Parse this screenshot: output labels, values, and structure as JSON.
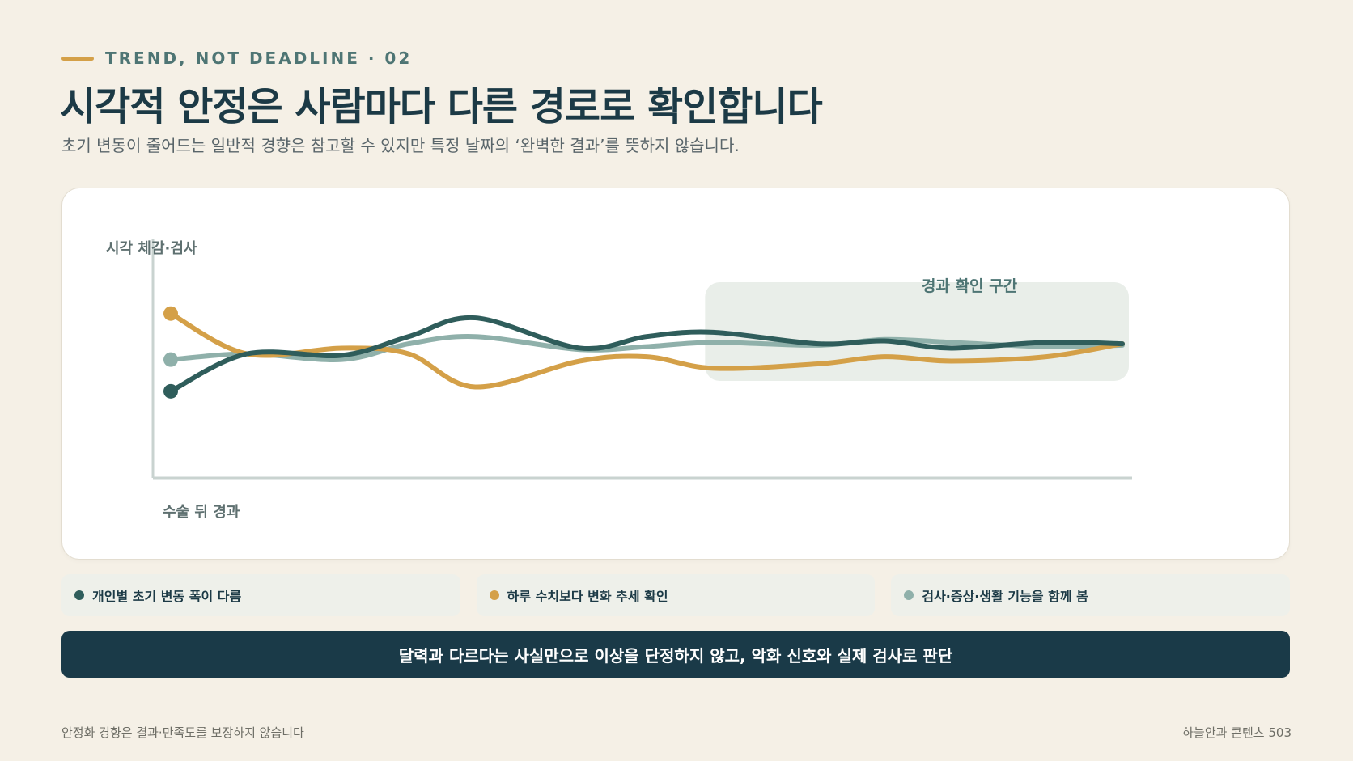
{
  "eyebrow": "TREND, NOT DEADLINE · 02",
  "title": "시각적 안정은 사람마다 다른 경로로 확인합니다",
  "subtitle": "초기 변동이 줄어드는 일반적 경향은 참고할 수 있지만 특정 날짜의 ‘완벽한 결과’를 뜻하지 않습니다.",
  "colors": {
    "dark_teal": "#2f5d5b",
    "amber": "#d4a048",
    "sage": "#8fb0aa",
    "banner": "#1a3a48",
    "zone": "#e9eee9"
  },
  "chart_data": {
    "type": "line",
    "ylabel": "시각 체감·검사",
    "xlabel": "수술 뒤 경과",
    "xlim": [
      0,
      100
    ],
    "ylim": [
      0,
      100
    ],
    "grid": false,
    "x": [
      0,
      8,
      18,
      25,
      32,
      43,
      50,
      57,
      68,
      75,
      82,
      92,
      100
    ],
    "series": [
      {
        "color": "#2f5d5b",
        "values": [
          22,
          48,
          47,
          60,
          73,
          52,
          60,
          63,
          55,
          57,
          52,
          56,
          55
        ]
      },
      {
        "color": "#d4a048",
        "values": [
          76,
          48,
          52,
          48,
          25,
          43,
          46,
          38,
          41,
          46,
          43,
          46,
          55
        ]
      },
      {
        "color": "#8fb0aa",
        "values": [
          44,
          48,
          44,
          55,
          60,
          51,
          53,
          56,
          54,
          58,
          56,
          53,
          54
        ]
      }
    ],
    "annotations": [
      {
        "text": "경과 확인 구간",
        "x_range": [
          57,
          100
        ]
      }
    ]
  },
  "legend": [
    {
      "label": "개인별 초기 변동 폭이 다름",
      "color": "#2f5d5b"
    },
    {
      "label": "하루 수치보다 변화 추세 확인",
      "color": "#d4a048"
    },
    {
      "label": "검사·증상·생활 기능을 함께 봄",
      "color": "#8fb0aa"
    }
  ],
  "banner": "달력과 다르다는 사실만으로 이상을 단정하지 않고, 악화 신호와 실제 검사로 판단",
  "footer": {
    "left": "안정화 경향은 결과·만족도를 보장하지 않습니다",
    "right": "하늘안과 콘텐츠 503"
  }
}
